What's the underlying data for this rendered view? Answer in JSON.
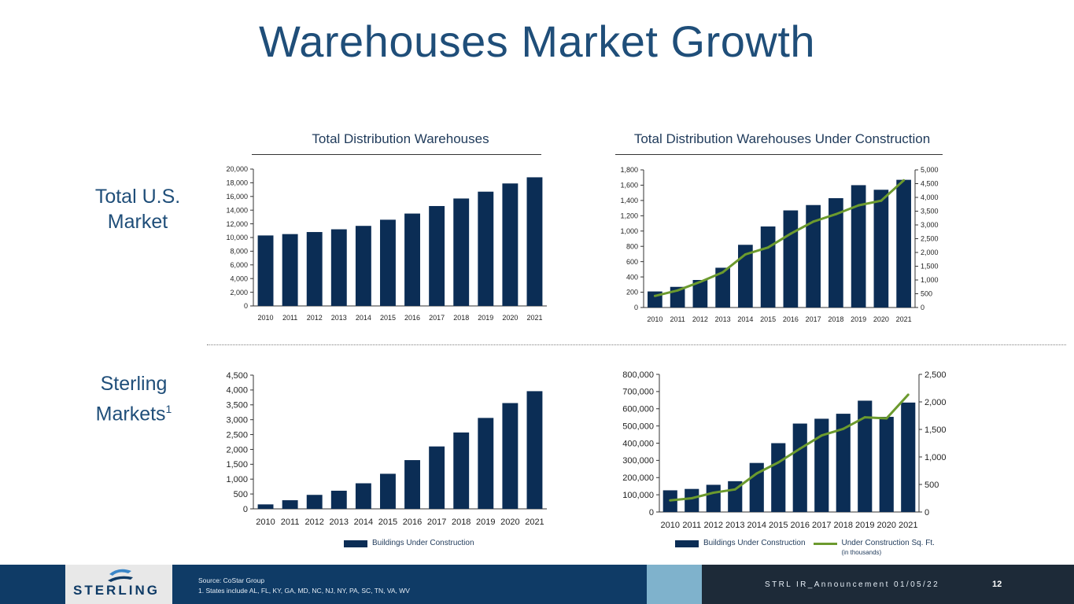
{
  "title": "Warehouses Market Growth",
  "section_titles": {
    "total": "Total Distribution Warehouses",
    "construction": "Total Distribution Warehouses Under Construction"
  },
  "row_labels": {
    "us_line1": "Total U.S.",
    "us_line2": "Market",
    "sterling_line1": "Sterling",
    "sterling_line2": "Markets",
    "sterling_footnote": "1"
  },
  "legends": {
    "left_bar": "Buildings Under Construction",
    "right_bar": "Buildings Under Construction",
    "right_line": "Under Construction Sq. Ft.",
    "right_line_sub": "(in thousands)"
  },
  "footer": {
    "logo": "STERLING",
    "source": "Source: CoStar Group",
    "footnote": "1.  States include AL, FL, KY, GA, MD, NC, NJ, NY, PA, SC, TN, VA, WV",
    "announcement": "STRL IR_Announcement 01/05/22",
    "page": "12"
  },
  "colors": {
    "bar": "#0b2d55",
    "line": "#6c9a2e",
    "title": "#1f4e79"
  },
  "chart_data": [
    {
      "id": "us_total",
      "type": "bar",
      "title": "Total Distribution Warehouses",
      "categories": [
        "2010",
        "2011",
        "2012",
        "2013",
        "2014",
        "2015",
        "2016",
        "2017",
        "2018",
        "2019",
        "2020",
        "2021"
      ],
      "values": [
        10300,
        10500,
        10800,
        11200,
        11700,
        12600,
        13500,
        14600,
        15700,
        16700,
        17900,
        18800
      ],
      "ylim": [
        0,
        20000
      ],
      "yticks": [
        "0",
        "2,000",
        "4,000",
        "6,000",
        "8,000",
        "10,000",
        "12,000",
        "14,000",
        "16,000",
        "18,000",
        "20,000"
      ]
    },
    {
      "id": "us_construction",
      "type": "bar+line",
      "title": "Total Distribution Warehouses Under Construction",
      "categories": [
        "2010",
        "2011",
        "2012",
        "2013",
        "2014",
        "2015",
        "2016",
        "2017",
        "2018",
        "2019",
        "2020",
        "2021"
      ],
      "series": [
        {
          "name": "Buildings Under Construction",
          "axis": "left",
          "values": [
            210,
            270,
            360,
            520,
            820,
            1060,
            1270,
            1340,
            1430,
            1600,
            1540,
            1670
          ]
        },
        {
          "name": "Under Construction Sq. Ft.",
          "axis": "right",
          "values": [
            420,
            620,
            930,
            1280,
            1930,
            2180,
            2680,
            3120,
            3390,
            3710,
            3880,
            4620
          ]
        }
      ],
      "ylim": [
        0,
        1800
      ],
      "y2lim": [
        0,
        5000
      ],
      "yticks": [
        "0",
        "200",
        "400",
        "600",
        "800",
        "1,000",
        "1,200",
        "1,400",
        "1,600",
        "1,800"
      ],
      "y2ticks": [
        "0",
        "500",
        "1,000",
        "1,500",
        "2,000",
        "2,500",
        "3,000",
        "3,500",
        "4,000",
        "4,500",
        "5,000"
      ]
    },
    {
      "id": "sterling_buildings",
      "type": "bar",
      "categories": [
        "2010",
        "2011",
        "2012",
        "2013",
        "2014",
        "2015",
        "2016",
        "2017",
        "2018",
        "2019",
        "2020",
        "2021"
      ],
      "values": [
        150,
        290,
        470,
        610,
        860,
        1180,
        1640,
        2100,
        2570,
        3060,
        3560,
        3960
      ],
      "ylim": [
        0,
        4500
      ],
      "yticks": [
        "0",
        "500",
        "1,000",
        "1,500",
        "2,000",
        "2,500",
        "3,000",
        "3,500",
        "4,000",
        "4,500"
      ]
    },
    {
      "id": "sterling_construction",
      "type": "bar+line",
      "categories": [
        "2010",
        "2011",
        "2012",
        "2013",
        "2014",
        "2015",
        "2016",
        "2017",
        "2018",
        "2019",
        "2020",
        "2021"
      ],
      "series": [
        {
          "name": "Buildings Under Construction",
          "axis": "left",
          "values": [
            126000,
            134000,
            158000,
            179000,
            285000,
            400000,
            514000,
            542000,
            571000,
            647000,
            553000,
            636000
          ]
        },
        {
          "name": "Under Construction Sq. Ft.",
          "axis": "right",
          "values": [
            210,
            250,
            350,
            410,
            700,
            900,
            1150,
            1390,
            1510,
            1720,
            1700,
            2130
          ]
        }
      ],
      "ylim": [
        0,
        800000
      ],
      "y2lim": [
        0,
        2500
      ],
      "yticks": [
        "0",
        "100,000",
        "200,000",
        "300,000",
        "400,000",
        "500,000",
        "600,000",
        "700,000",
        "800,000"
      ],
      "y2ticks": [
        "0",
        "500",
        "1,000",
        "1,500",
        "2,000",
        "2,500"
      ]
    }
  ]
}
